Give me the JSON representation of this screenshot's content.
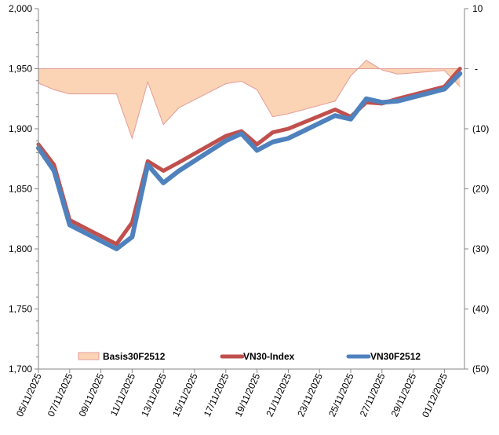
{
  "chart_data": {
    "type": "line",
    "title": "",
    "dates": [
      "05/11/2025",
      "06/11/2025",
      "07/11/2025",
      "10/11/2025",
      "11/11/2025",
      "12/11/2025",
      "13/11/2025",
      "14/11/2025",
      "17/11/2025",
      "18/11/2025",
      "19/11/2025",
      "20/11/2025",
      "21/11/2025",
      "24/11/2025",
      "25/11/2025",
      "26/11/2025",
      "27/11/2025",
      "28/11/2025",
      "01/12/2025",
      "02/12/2025"
    ],
    "x_tick_labels": [
      "05/11/2025",
      "07/11/2025",
      "09/11/2025",
      "11/11/2025",
      "13/11/2025",
      "15/11/2025",
      "17/11/2025",
      "19/11/2025",
      "21/11/2025",
      "23/11/2025",
      "25/11/2025",
      "27/11/2025",
      "29/11/2025",
      "01/12/2025"
    ],
    "left_axis": {
      "ylim": [
        1700,
        2000
      ],
      "ticks": [
        "1,700",
        "1,750",
        "1,800",
        "1,850",
        "1,900",
        "1,950",
        "2,000"
      ]
    },
    "right_axis": {
      "ylim": [
        -50,
        10
      ],
      "ticks": [
        "(50)",
        "(40)",
        "(30)",
        "(20)",
        "(10)",
        "-",
        "10"
      ]
    },
    "series": [
      {
        "name": "Basis30F2512",
        "type": "area",
        "axis": "right",
        "color": "#FBD3B5",
        "stroke": "#E39C98",
        "values": [
          -2.4,
          -3.5,
          -4.2,
          -4.2,
          -11.6,
          -2.2,
          -9.3,
          -6.5,
          -2.5,
          -2.1,
          -3.5,
          -8.0,
          -7.5,
          -5.4,
          -1.2,
          1.4,
          -0.2,
          -0.9,
          -0.3,
          -3.0
        ]
      },
      {
        "name": "VN30-Index",
        "type": "line",
        "axis": "left",
        "color": "#C0504D",
        "values": [
          1887,
          1870,
          1824,
          1804,
          1822,
          1873,
          1865,
          1872,
          1894,
          1898,
          1887,
          1897,
          1900,
          1916,
          1910,
          1922,
          1921,
          1925,
          1935,
          1950
        ]
      },
      {
        "name": "VN30F2512",
        "type": "line",
        "axis": "left",
        "color": "#4F81BD",
        "values": [
          1884,
          1865,
          1820,
          1800,
          1810,
          1870,
          1855,
          1865,
          1890,
          1896,
          1882,
          1889,
          1892,
          1911,
          1908,
          1925,
          1922,
          1923,
          1933,
          1946
        ]
      }
    ],
    "legend": {
      "placement": "bottom-inside"
    },
    "grid": false
  }
}
